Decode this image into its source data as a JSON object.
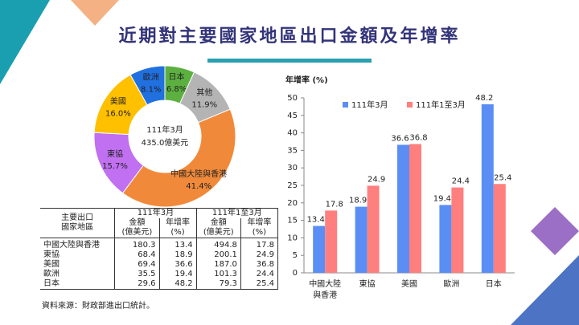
{
  "title": "近期對主要國家地區出口金額及年增率",
  "chart_data": [
    {
      "type": "pie",
      "donut": true,
      "center_text": [
        "111年3月",
        "435.0億美元"
      ],
      "categories": [
        "日本",
        "其他",
        "中國大陸與香港",
        "東協",
        "美國",
        "歐洲"
      ],
      "values": [
        6.8,
        11.9,
        41.4,
        15.7,
        16.0,
        8.1
      ],
      "value_labels": [
        "6.8%",
        "11.9%",
        "41.4%",
        "15.7%",
        "16.0%",
        "8.1%"
      ],
      "colors": [
        "#5cb040",
        "#b4b4b4",
        "#f08a3a",
        "#c070f0",
        "#ffc000",
        "#2070e0"
      ]
    },
    {
      "type": "bar",
      "y_label": "年增率 (%)",
      "categories": [
        "中國大陸\n與香港",
        "東協",
        "美國",
        "歐洲",
        "日本"
      ],
      "series": [
        {
          "name": "111年3月",
          "color": "#5b8ef5",
          "values": [
            13.4,
            18.9,
            36.6,
            19.4,
            48.2
          ]
        },
        {
          "name": "111年1至3月",
          "color": "#ff7f7f",
          "values": [
            17.8,
            24.9,
            36.8,
            24.4,
            25.4
          ]
        }
      ],
      "ylim": [
        0,
        50
      ],
      "yticks": [
        0,
        5,
        10,
        15,
        20,
        25,
        30,
        35,
        40,
        45,
        50
      ],
      "grid": false,
      "legend": "top"
    }
  ],
  "table": {
    "header": [
      "主要出口\n國家地區"
    ],
    "groups": [
      "111年3月",
      "111年1至3月"
    ],
    "subheaders": [
      "金額\n(億美元)",
      "年增率\n(%)",
      "金額\n(億美元)",
      "年增率\n(%)"
    ],
    "rows": [
      [
        "中國大陸與香港",
        "180.3",
        "13.4",
        "494.8",
        "17.8"
      ],
      [
        "東協",
        "68.4",
        "18.9",
        "200.1",
        "24.9"
      ],
      [
        "美國",
        "69.4",
        "36.6",
        "187.0",
        "36.8"
      ],
      [
        "歐洲",
        "35.5",
        "19.4",
        "101.3",
        "24.4"
      ],
      [
        "日本",
        "29.6",
        "48.2",
        "79.3",
        "25.4"
      ]
    ]
  },
  "source": "資料來源：財政部進出口統計。"
}
